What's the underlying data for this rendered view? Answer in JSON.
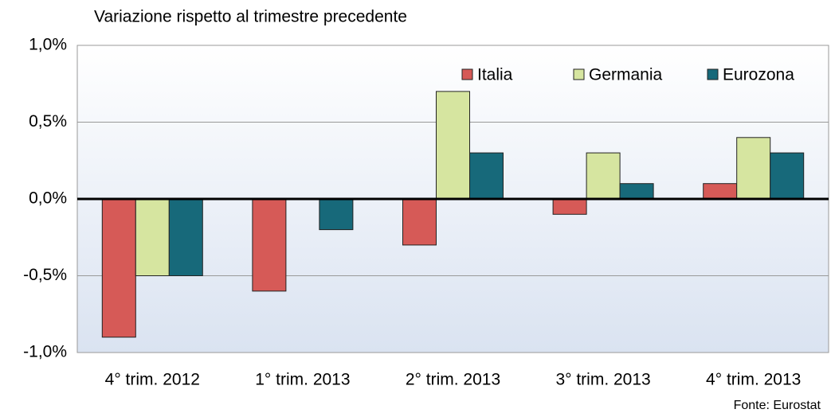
{
  "chart_data": {
    "type": "bar",
    "subtitle": "Variazione rispetto al trimestre precedente",
    "source": "Fonte: Eurostat",
    "categories": [
      "4° trim. 2012",
      "1° trim. 2013",
      "2° trim. 2013",
      "3° trim. 2013",
      "4° trim. 2013"
    ],
    "series": [
      {
        "name": "Italia",
        "color": "#d65a57",
        "values": [
          -0.9,
          -0.6,
          -0.3,
          -0.1,
          0.1
        ]
      },
      {
        "name": "Germania",
        "color": "#d6e5a0",
        "values": [
          -0.5,
          0,
          0.7,
          0.3,
          0.4
        ]
      },
      {
        "name": "Eurozona",
        "color": "#17697a",
        "values": [
          -0.5,
          -0.2,
          0.3,
          0.1,
          0.3
        ]
      }
    ],
    "ylim": [
      -1,
      1
    ],
    "yticks": [
      {
        "value": -1,
        "label": "-1,0%"
      },
      {
        "value": -0.5,
        "label": "-0,5%"
      },
      {
        "value": 0,
        "label": "0,0%"
      },
      {
        "value": 0.5,
        "label": "0,5%"
      },
      {
        "value": 1,
        "label": "1,0%"
      }
    ],
    "grid": true,
    "legend": "top-right"
  }
}
